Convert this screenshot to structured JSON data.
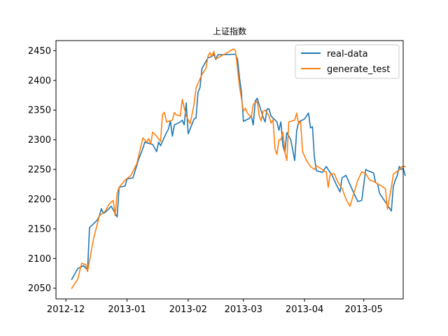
{
  "chart_data": {
    "type": "line",
    "title": "上证指数",
    "xlabel": "",
    "ylabel": "",
    "x_tick_labels": [
      "2012-12",
      "2013-01",
      "2013-02",
      "2013-03",
      "2013-04",
      "2013-05"
    ],
    "x_tick_dates": [
      "2012-12-01",
      "2013-01-01",
      "2013-02-01",
      "2013-03-01",
      "2013-04-01",
      "2013-05-01"
    ],
    "xlim": [
      "2012-11-26",
      "2013-05-21"
    ],
    "y_ticks": [
      2050,
      2100,
      2150,
      2200,
      2250,
      2300,
      2350,
      2400,
      2450
    ],
    "ylim": [
      2032,
      2467
    ],
    "grid": false,
    "legend_position": "top-right",
    "colors": {
      "real-data": "#1f77b4",
      "generate_test": "#ff7f0e"
    },
    "series": [
      {
        "name": "real-data",
        "color": "#1f77b4",
        "points": [
          [
            "2012-12-04",
            2065
          ],
          [
            "2012-12-07",
            2083
          ],
          [
            "2012-12-10",
            2088
          ],
          [
            "2012-12-12",
            2080
          ],
          [
            "2012-12-13",
            2152
          ],
          [
            "2012-12-17",
            2165
          ],
          [
            "2012-12-18",
            2172
          ],
          [
            "2012-12-19",
            2184
          ],
          [
            "2012-12-20",
            2176
          ],
          [
            "2012-12-21",
            2178
          ],
          [
            "2012-12-24",
            2188
          ],
          [
            "2012-12-25",
            2182
          ],
          [
            "2012-12-26",
            2176
          ],
          [
            "2012-12-27",
            2170
          ],
          [
            "2012-12-28",
            2220
          ],
          [
            "2012-12-31",
            2222
          ],
          [
            "2013-01-01",
            2234
          ],
          [
            "2013-01-04",
            2236
          ],
          [
            "2013-01-07",
            2268
          ],
          [
            "2013-01-09",
            2285
          ],
          [
            "2013-01-10",
            2296
          ],
          [
            "2013-01-14",
            2292
          ],
          [
            "2013-01-15",
            2286
          ],
          [
            "2013-01-16",
            2280
          ],
          [
            "2013-01-17",
            2296
          ],
          [
            "2013-01-18",
            2290
          ],
          [
            "2013-01-21",
            2312
          ],
          [
            "2013-01-22",
            2318
          ],
          [
            "2013-01-23",
            2332
          ],
          [
            "2013-01-24",
            2306
          ],
          [
            "2013-01-25",
            2325
          ],
          [
            "2013-01-28",
            2330
          ],
          [
            "2013-01-29",
            2333
          ],
          [
            "2013-01-30",
            2325
          ],
          [
            "2013-01-31",
            2362
          ],
          [
            "2013-02-01",
            2310
          ],
          [
            "2013-02-04",
            2335
          ],
          [
            "2013-02-05",
            2337
          ],
          [
            "2013-02-06",
            2380
          ],
          [
            "2013-02-07",
            2388
          ],
          [
            "2013-02-08",
            2420
          ],
          [
            "2013-02-11",
            2438
          ],
          [
            "2013-02-13",
            2440
          ],
          [
            "2013-02-14",
            2444
          ],
          [
            "2013-02-15",
            2435
          ],
          [
            "2013-02-16",
            2443
          ],
          [
            "2013-02-25",
            2444
          ],
          [
            "2013-02-26",
            2436
          ],
          [
            "2013-02-27",
            2405
          ],
          [
            "2013-02-28",
            2380
          ],
          [
            "2013-03-01",
            2331
          ],
          [
            "2013-03-04",
            2336
          ],
          [
            "2013-03-05",
            2340
          ],
          [
            "2013-03-06",
            2325
          ],
          [
            "2013-03-07",
            2365
          ],
          [
            "2013-03-08",
            2370
          ],
          [
            "2013-03-11",
            2338
          ],
          [
            "2013-03-12",
            2330
          ],
          [
            "2013-03-13",
            2352
          ],
          [
            "2013-03-14",
            2352
          ],
          [
            "2013-03-15",
            2340
          ],
          [
            "2013-03-18",
            2330
          ],
          [
            "2013-03-19",
            2316
          ],
          [
            "2013-03-20",
            2330
          ],
          [
            "2013-03-21",
            2290
          ],
          [
            "2013-03-22",
            2279
          ],
          [
            "2013-03-23",
            2312
          ],
          [
            "2013-03-25",
            2300
          ],
          [
            "2013-03-26",
            2283
          ],
          [
            "2013-03-27",
            2265
          ],
          [
            "2013-03-28",
            2315
          ],
          [
            "2013-03-29",
            2330
          ],
          [
            "2013-04-01",
            2335
          ],
          [
            "2013-04-02",
            2340
          ],
          [
            "2013-04-03",
            2345
          ],
          [
            "2013-04-04",
            2320
          ],
          [
            "2013-04-05",
            2322
          ],
          [
            "2013-04-06",
            2270
          ],
          [
            "2013-04-07",
            2248
          ],
          [
            "2013-04-10",
            2245
          ],
          [
            "2013-04-12",
            2255
          ],
          [
            "2013-04-15",
            2240
          ],
          [
            "2013-04-17",
            2225
          ],
          [
            "2013-04-19",
            2212
          ],
          [
            "2013-04-20",
            2236
          ],
          [
            "2013-04-22",
            2240
          ],
          [
            "2013-04-24",
            2225
          ],
          [
            "2013-04-26",
            2210
          ],
          [
            "2013-04-28",
            2196
          ],
          [
            "2013-04-30",
            2198
          ],
          [
            "2013-05-02",
            2250
          ],
          [
            "2013-05-03",
            2248
          ],
          [
            "2013-05-06",
            2244
          ],
          [
            "2013-05-07",
            2228
          ],
          [
            "2013-05-08",
            2226
          ],
          [
            "2013-05-09",
            2210
          ],
          [
            "2013-05-14",
            2185
          ],
          [
            "2013-05-15",
            2180
          ],
          [
            "2013-05-16",
            2222
          ],
          [
            "2013-05-17",
            2232
          ],
          [
            "2013-05-18",
            2240
          ],
          [
            "2013-05-19",
            2255
          ],
          [
            "2013-05-20",
            2250
          ],
          [
            "2013-05-21",
            2252
          ],
          [
            "2013-05-22",
            2240
          ]
        ]
      },
      {
        "name": "generate_test",
        "color": "#ff7f0e",
        "points": [
          [
            "2012-12-04",
            2050
          ],
          [
            "2012-12-07",
            2065
          ],
          [
            "2012-12-09",
            2092
          ],
          [
            "2012-12-11",
            2090
          ],
          [
            "2012-12-12",
            2078
          ],
          [
            "2012-12-15",
            2133
          ],
          [
            "2012-12-18",
            2172
          ],
          [
            "2012-12-21",
            2180
          ],
          [
            "2012-12-23",
            2192
          ],
          [
            "2012-12-25",
            2198
          ],
          [
            "2012-12-26",
            2172
          ],
          [
            "2012-12-27",
            2210
          ],
          [
            "2012-12-28",
            2220
          ],
          [
            "2012-12-31",
            2232
          ],
          [
            "2013-01-03",
            2240
          ],
          [
            "2013-01-06",
            2260
          ],
          [
            "2013-01-09",
            2303
          ],
          [
            "2013-01-10",
            2300
          ],
          [
            "2013-01-11",
            2296
          ],
          [
            "2013-01-12",
            2302
          ],
          [
            "2013-01-13",
            2293
          ],
          [
            "2013-01-14",
            2313
          ],
          [
            "2013-01-16",
            2306
          ],
          [
            "2013-01-18",
            2297
          ],
          [
            "2013-01-19",
            2343
          ],
          [
            "2013-01-20",
            2346
          ],
          [
            "2013-01-21",
            2330
          ],
          [
            "2013-01-24",
            2333
          ],
          [
            "2013-01-25",
            2346
          ],
          [
            "2013-01-26",
            2342
          ],
          [
            "2013-01-28",
            2340
          ],
          [
            "2013-01-29",
            2368
          ],
          [
            "2013-01-31",
            2340
          ],
          [
            "2013-02-02",
            2327
          ],
          [
            "2013-02-04",
            2360
          ],
          [
            "2013-02-05",
            2387
          ],
          [
            "2013-02-06",
            2395
          ],
          [
            "2013-02-08",
            2410
          ],
          [
            "2013-02-10",
            2420
          ],
          [
            "2013-02-11",
            2440
          ],
          [
            "2013-02-12",
            2447
          ],
          [
            "2013-02-13",
            2440
          ],
          [
            "2013-02-14",
            2449
          ],
          [
            "2013-02-15",
            2436
          ],
          [
            "2013-02-22",
            2449
          ],
          [
            "2013-02-24",
            2453
          ],
          [
            "2013-02-25",
            2450
          ],
          [
            "2013-02-26",
            2420
          ],
          [
            "2013-02-27",
            2390
          ],
          [
            "2013-02-28",
            2370
          ],
          [
            "2013-03-01",
            2348
          ],
          [
            "2013-03-02",
            2353
          ],
          [
            "2013-03-03",
            2345
          ],
          [
            "2013-03-05",
            2338
          ],
          [
            "2013-03-06",
            2360
          ],
          [
            "2013-03-07",
            2362
          ],
          [
            "2013-03-08",
            2365
          ],
          [
            "2013-03-09",
            2340
          ],
          [
            "2013-03-10",
            2332
          ],
          [
            "2013-03-11",
            2348
          ],
          [
            "2013-03-12",
            2350
          ],
          [
            "2013-03-14",
            2340
          ],
          [
            "2013-03-15",
            2328
          ],
          [
            "2013-03-16",
            2334
          ],
          [
            "2013-03-17",
            2285
          ],
          [
            "2013-03-18",
            2275
          ],
          [
            "2013-03-19",
            2300
          ],
          [
            "2013-03-20",
            2300
          ],
          [
            "2013-03-21",
            2313
          ],
          [
            "2013-03-22",
            2280
          ],
          [
            "2013-03-23",
            2265
          ],
          [
            "2013-03-24",
            2330
          ],
          [
            "2013-03-26",
            2332
          ],
          [
            "2013-03-27",
            2333
          ],
          [
            "2013-03-28",
            2345
          ],
          [
            "2013-03-29",
            2327
          ],
          [
            "2013-03-30",
            2330
          ],
          [
            "2013-03-31",
            2280
          ],
          [
            "2013-04-02",
            2265
          ],
          [
            "2013-04-04",
            2255
          ],
          [
            "2013-04-06",
            2250
          ],
          [
            "2013-04-07",
            2256
          ],
          [
            "2013-04-10",
            2250
          ],
          [
            "2013-04-11",
            2247
          ],
          [
            "2013-04-12",
            2246
          ],
          [
            "2013-04-13",
            2220
          ],
          [
            "2013-04-14",
            2242
          ],
          [
            "2013-04-16",
            2243
          ],
          [
            "2013-04-18",
            2228
          ],
          [
            "2013-04-20",
            2218
          ],
          [
            "2013-04-22",
            2200
          ],
          [
            "2013-04-24",
            2188
          ],
          [
            "2013-04-26",
            2210
          ],
          [
            "2013-04-28",
            2232
          ],
          [
            "2013-04-30",
            2246
          ],
          [
            "2013-05-02",
            2243
          ],
          [
            "2013-05-04",
            2232
          ],
          [
            "2013-05-06",
            2230
          ],
          [
            "2013-05-08",
            2226
          ],
          [
            "2013-05-11",
            2220
          ],
          [
            "2013-05-12",
            2217
          ],
          [
            "2013-05-13",
            2183
          ],
          [
            "2013-05-15",
            2220
          ],
          [
            "2013-05-16",
            2242
          ],
          [
            "2013-05-18",
            2247
          ],
          [
            "2013-05-19",
            2249
          ],
          [
            "2013-05-20",
            2254
          ],
          [
            "2013-05-21",
            2255
          ],
          [
            "2013-05-22",
            2255
          ]
        ]
      }
    ]
  }
}
